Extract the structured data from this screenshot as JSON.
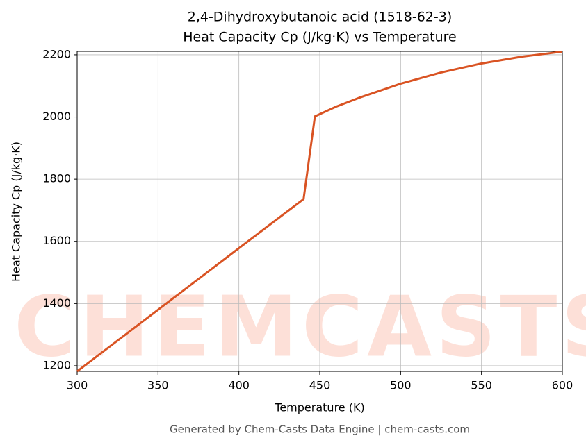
{
  "chart_data": {
    "type": "line",
    "title": [
      "2,4-Dihydroxybutanoic acid (1518-62-3)",
      "Heat Capacity Cp (J/kg·K) vs Temperature"
    ],
    "x_label": "Temperature (K)",
    "y_label": "Heat Capacity Cp (J/kg·K)",
    "footer": "Generated by Chem-Casts Data Engine | chem-casts.com",
    "watermark": "CHEMCASTS",
    "x": [
      300,
      350,
      400,
      440,
      447,
      460,
      475,
      500,
      525,
      550,
      575,
      600
    ],
    "series": [
      {
        "name": "Cp",
        "color": "#d95323",
        "values": [
          1182,
          1380,
          1578,
          1736,
          2002,
          2033,
          2063,
          2107,
          2143,
          2172,
          2194,
          2210
        ]
      }
    ],
    "xlim": [
      300,
      600
    ],
    "xticks": [
      300,
      350,
      400,
      450,
      500,
      550,
      600
    ],
    "ylim": [
      1182,
      2211
    ],
    "yticks": [
      1200,
      1400,
      1600,
      1800,
      2000,
      2200
    ],
    "grid": true
  }
}
